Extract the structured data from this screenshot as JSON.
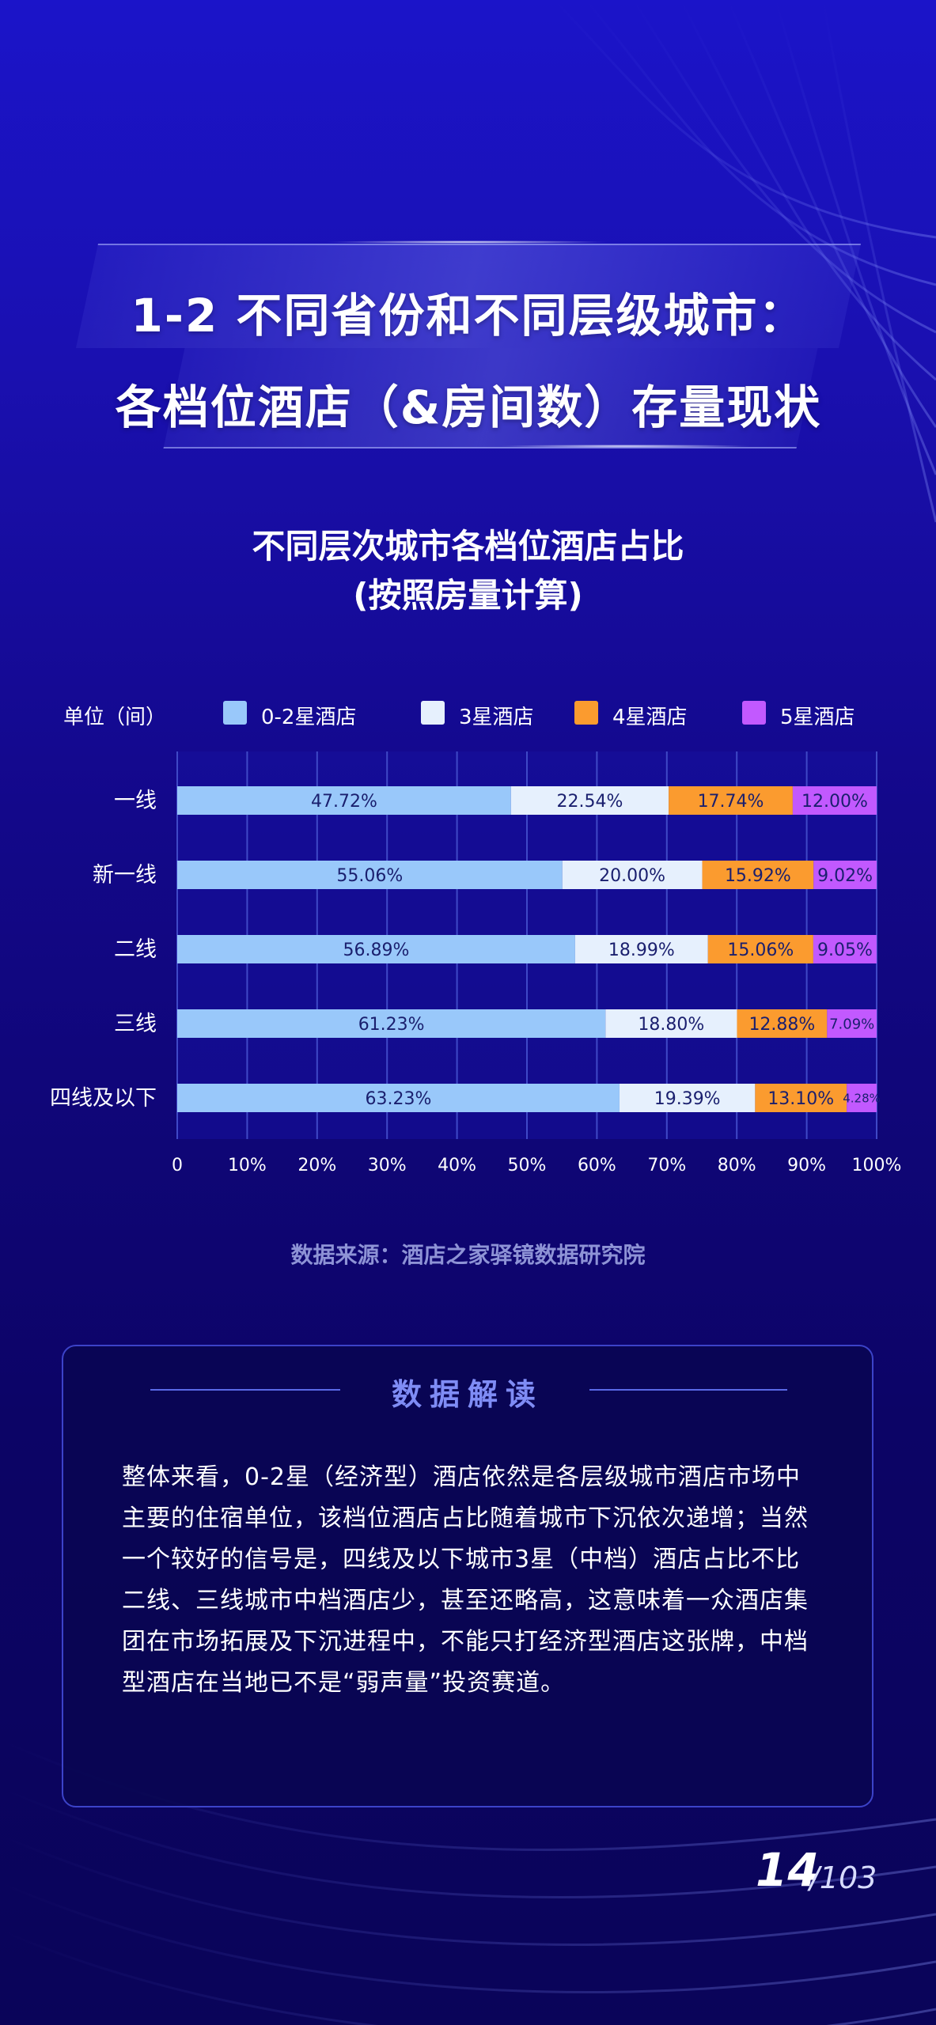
{
  "title": {
    "line1": "1-2 不同省份和不同层级城市：",
    "line2": "各档位酒店（&房间数）存量现状"
  },
  "chart_title": {
    "line1": "不同层次城市各档位酒店占比",
    "line2": "(按照房量计算)"
  },
  "legend": {
    "unit": "单位（间）",
    "items": [
      {
        "label": "0-2星酒店",
        "color": "#99c8fa"
      },
      {
        "label": "3星酒店",
        "color": "#e6f0fd"
      },
      {
        "label": "4星酒店",
        "color": "#fb9b2f"
      },
      {
        "label": "5星酒店",
        "color": "#c259ff"
      }
    ]
  },
  "chart_data": {
    "type": "bar",
    "orientation": "horizontal",
    "stacked": true,
    "categories": [
      "一线",
      "新一线",
      "二线",
      "三线",
      "四线及以下"
    ],
    "series": [
      {
        "name": "0-2星酒店",
        "color": "#99c8fa",
        "values": [
          47.72,
          55.06,
          56.89,
          61.23,
          63.23
        ],
        "labels": [
          "47.72%",
          "55.06%",
          "56.89%",
          "61.23%",
          "63.23%"
        ]
      },
      {
        "name": "3星酒店",
        "color": "#e6f0fd",
        "values": [
          22.54,
          20.0,
          18.99,
          18.8,
          19.39
        ],
        "labels": [
          "22.54%",
          "20.00%",
          "18.99%",
          "18.80%",
          "19.39%"
        ]
      },
      {
        "name": "4星酒店",
        "color": "#fb9b2f",
        "values": [
          17.74,
          15.92,
          15.06,
          12.88,
          13.1
        ],
        "labels": [
          "17.74%",
          "15.92%",
          "15.06%",
          "12.88%",
          "13.10%"
        ]
      },
      {
        "name": "5星酒店",
        "color": "#c259ff",
        "values": [
          12.0,
          9.02,
          9.05,
          7.09,
          4.28
        ],
        "labels": [
          "12.00%",
          "9.02%",
          "9.05%",
          "7.09%",
          "4.28%"
        ]
      }
    ],
    "xlim": [
      0,
      100
    ],
    "x_ticks": [
      "0",
      "10%",
      "20%",
      "30%",
      "40%",
      "50%",
      "60%",
      "70%",
      "80%",
      "90%",
      "100%"
    ],
    "grid": true
  },
  "source": "数据来源：酒店之家驿镜数据研究院",
  "interpretation": {
    "heading": "数据解读",
    "body": "整体来看，0-2星（经济型）酒店依然是各层级城市酒店市场中主要的住宿单位，该档位酒店占比随着城市下沉依次递增；当然一个较好的信号是，四线及以下城市3星（中档）酒店占比不比二线、三线城市中档酒店少，甚至还略高，这意味着一众酒店集团在市场拓展及下沉进程中，不能只打经济型酒店这张牌，中档型酒店在当地已不是“弱声量”投资赛道。"
  },
  "pager": {
    "current": "14",
    "total": "/103"
  }
}
